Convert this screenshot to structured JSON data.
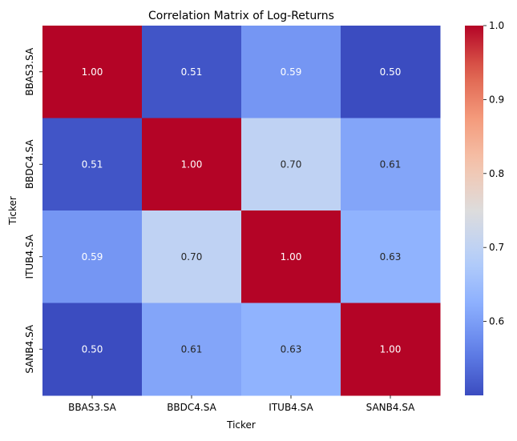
{
  "chart_data": {
    "type": "heatmap",
    "title": "Correlation Matrix of Log-Returns",
    "xlabel": "Ticker",
    "ylabel": "Ticker",
    "x_categories": [
      "BBAS3.SA",
      "BBDC4.SA",
      "ITUB4.SA",
      "SANB4.SA"
    ],
    "y_categories": [
      "BBAS3.SA",
      "BBDC4.SA",
      "ITUB4.SA",
      "SANB4.SA"
    ],
    "values": [
      [
        1.0,
        0.51,
        0.59,
        0.5
      ],
      [
        0.51,
        1.0,
        0.7,
        0.61
      ],
      [
        0.59,
        0.7,
        1.0,
        0.63
      ],
      [
        0.5,
        0.61,
        0.63,
        1.0
      ]
    ],
    "value_format": "0.00",
    "annotate": true,
    "colormap": "coolwarm",
    "colorbar": {
      "range": [
        0.5,
        1.0
      ],
      "ticks": [
        0.6,
        0.7,
        0.8,
        0.9,
        1.0
      ],
      "tick_labels": [
        "0.6",
        "0.7",
        "0.8",
        "0.9",
        "1.0"
      ],
      "placement": "right"
    },
    "colors": {
      "low": "#3b4cc0",
      "mid": "#dddcdc",
      "high": "#b40426",
      "text_light": "#ffffff",
      "text_dark": "#262626"
    }
  }
}
